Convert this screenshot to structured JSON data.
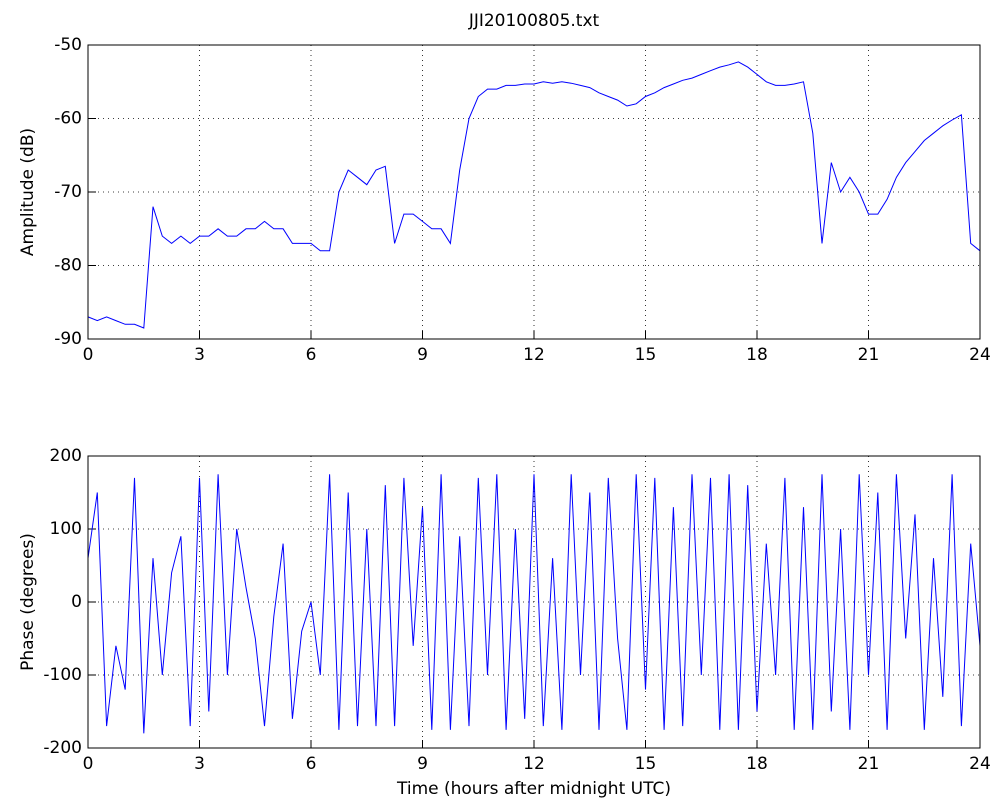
{
  "chart_data": [
    {
      "type": "line",
      "title": "JJI20100805.txt",
      "ylabel": "Amplitude (dB)",
      "x": [
        0,
        0.25,
        0.5,
        0.75,
        1,
        1.25,
        1.5,
        1.75,
        2,
        2.25,
        2.5,
        2.75,
        3,
        3.25,
        3.5,
        3.75,
        4,
        4.25,
        4.5,
        4.75,
        5,
        5.25,
        5.5,
        5.75,
        6,
        6.25,
        6.5,
        6.75,
        7,
        7.25,
        7.5,
        7.75,
        8,
        8.25,
        8.5,
        8.75,
        9,
        9.25,
        9.5,
        9.75,
        10,
        10.25,
        10.5,
        10.75,
        11,
        11.25,
        11.5,
        11.75,
        12,
        12.25,
        12.5,
        12.75,
        13,
        13.25,
        13.5,
        13.75,
        14,
        14.25,
        14.5,
        14.75,
        15,
        15.25,
        15.5,
        15.75,
        16,
        16.25,
        16.5,
        16.75,
        17,
        17.25,
        17.5,
        17.75,
        18,
        18.25,
        18.5,
        18.75,
        19,
        19.25,
        19.5,
        19.75,
        20,
        20.25,
        20.5,
        20.75,
        21,
        21.25,
        21.5,
        21.75,
        22,
        22.25,
        22.5,
        22.75,
        23,
        23.25,
        23.5,
        23.75,
        24
      ],
      "series": [
        {
          "color": "#0000ff",
          "values": [
            -87,
            -87.5,
            -87,
            -87.5,
            -88,
            -88,
            -88.5,
            -72,
            -76,
            -77,
            -76,
            -77,
            -76,
            -76,
            -75,
            -76,
            -76,
            -75,
            -75,
            -74,
            -75,
            -75,
            -77,
            -77,
            -77,
            -78,
            -78,
            -70,
            -67,
            -68,
            -69,
            -67,
            -66.5,
            -77,
            -73,
            -73,
            -74,
            -75,
            -75,
            -77,
            -67,
            -60,
            -57,
            -56,
            -56,
            -55.5,
            -55.5,
            -55.3,
            -55.3,
            -55,
            -55.2,
            -55,
            -55.2,
            -55.5,
            -55.8,
            -56.5,
            -57,
            -57.5,
            -58.3,
            -58,
            -57,
            -56.5,
            -55.8,
            -55.3,
            -54.8,
            -54.5,
            -54,
            -53.5,
            -53,
            -52.7,
            -52.3,
            -53,
            -54,
            -55,
            -55.5,
            -55.5,
            -55.3,
            -55,
            -62,
            -77,
            -66,
            -70,
            -68,
            -70,
            -73,
            -73,
            -71,
            -68,
            -66,
            -64.5,
            -63,
            -62,
            -61,
            -60.2,
            -59.5,
            -77,
            -78
          ]
        }
      ],
      "xlim": [
        0,
        24
      ],
      "xticks": [
        0,
        3,
        6,
        9,
        12,
        15,
        18,
        21,
        24
      ],
      "ylim": [
        -90,
        -50
      ],
      "yticks": [
        -90,
        -80,
        -70,
        -60,
        -50
      ],
      "grid": true
    },
    {
      "type": "line",
      "ylabel": "Phase (degrees)",
      "xlabel": "Time (hours after midnight UTC)",
      "x": [
        0,
        0.25,
        0.5,
        0.75,
        1,
        1.25,
        1.5,
        1.75,
        2,
        2.25,
        2.5,
        2.75,
        3,
        3.25,
        3.5,
        3.75,
        4,
        4.25,
        4.5,
        4.75,
        5,
        5.25,
        5.5,
        5.75,
        6,
        6.25,
        6.5,
        6.75,
        7,
        7.25,
        7.5,
        7.75,
        8,
        8.25,
        8.5,
        8.75,
        9,
        9.25,
        9.5,
        9.75,
        10,
        10.25,
        10.5,
        10.75,
        11,
        11.25,
        11.5,
        11.75,
        12,
        12.25,
        12.5,
        12.75,
        13,
        13.25,
        13.5,
        13.75,
        14,
        14.25,
        14.5,
        14.75,
        15,
        15.25,
        15.5,
        15.75,
        16,
        16.25,
        16.5,
        16.75,
        17,
        17.25,
        17.5,
        17.75,
        18,
        18.25,
        18.5,
        18.75,
        19,
        19.25,
        19.5,
        19.75,
        20,
        20.25,
        20.5,
        20.75,
        21,
        21.25,
        21.5,
        21.75,
        22,
        22.25,
        22.5,
        22.75,
        23,
        23.25,
        23.5,
        23.75,
        24
      ],
      "series": [
        {
          "color": "#0000ff",
          "values": [
            60,
            150,
            -170,
            -60,
            -120,
            170,
            -180,
            60,
            -100,
            40,
            90,
            -170,
            170,
            -150,
            175,
            -100,
            100,
            20,
            -50,
            -170,
            -20,
            80,
            -160,
            -40,
            0,
            -100,
            175,
            -175,
            150,
            -170,
            100,
            -170,
            160,
            -170,
            170,
            -60,
            130,
            -175,
            175,
            -175,
            90,
            -170,
            170,
            -100,
            175,
            -175,
            100,
            -160,
            175,
            -170,
            60,
            -175,
            175,
            -100,
            150,
            -175,
            170,
            -50,
            -175,
            175,
            -120,
            170,
            -175,
            130,
            -170,
            175,
            -100,
            170,
            -175,
            175,
            -175,
            160,
            -150,
            80,
            -100,
            170,
            -175,
            130,
            -175,
            175,
            -150,
            100,
            -175,
            175,
            -100,
            150,
            -175,
            175,
            -50,
            120,
            -175,
            60,
            -130,
            175,
            -170,
            80,
            -60
          ]
        }
      ],
      "xlim": [
        0,
        24
      ],
      "xticks": [
        0,
        3,
        6,
        9,
        12,
        15,
        18,
        21,
        24
      ],
      "ylim": [
        -200,
        200
      ],
      "yticks": [
        -200,
        -100,
        0,
        100,
        200
      ],
      "grid": true
    }
  ]
}
